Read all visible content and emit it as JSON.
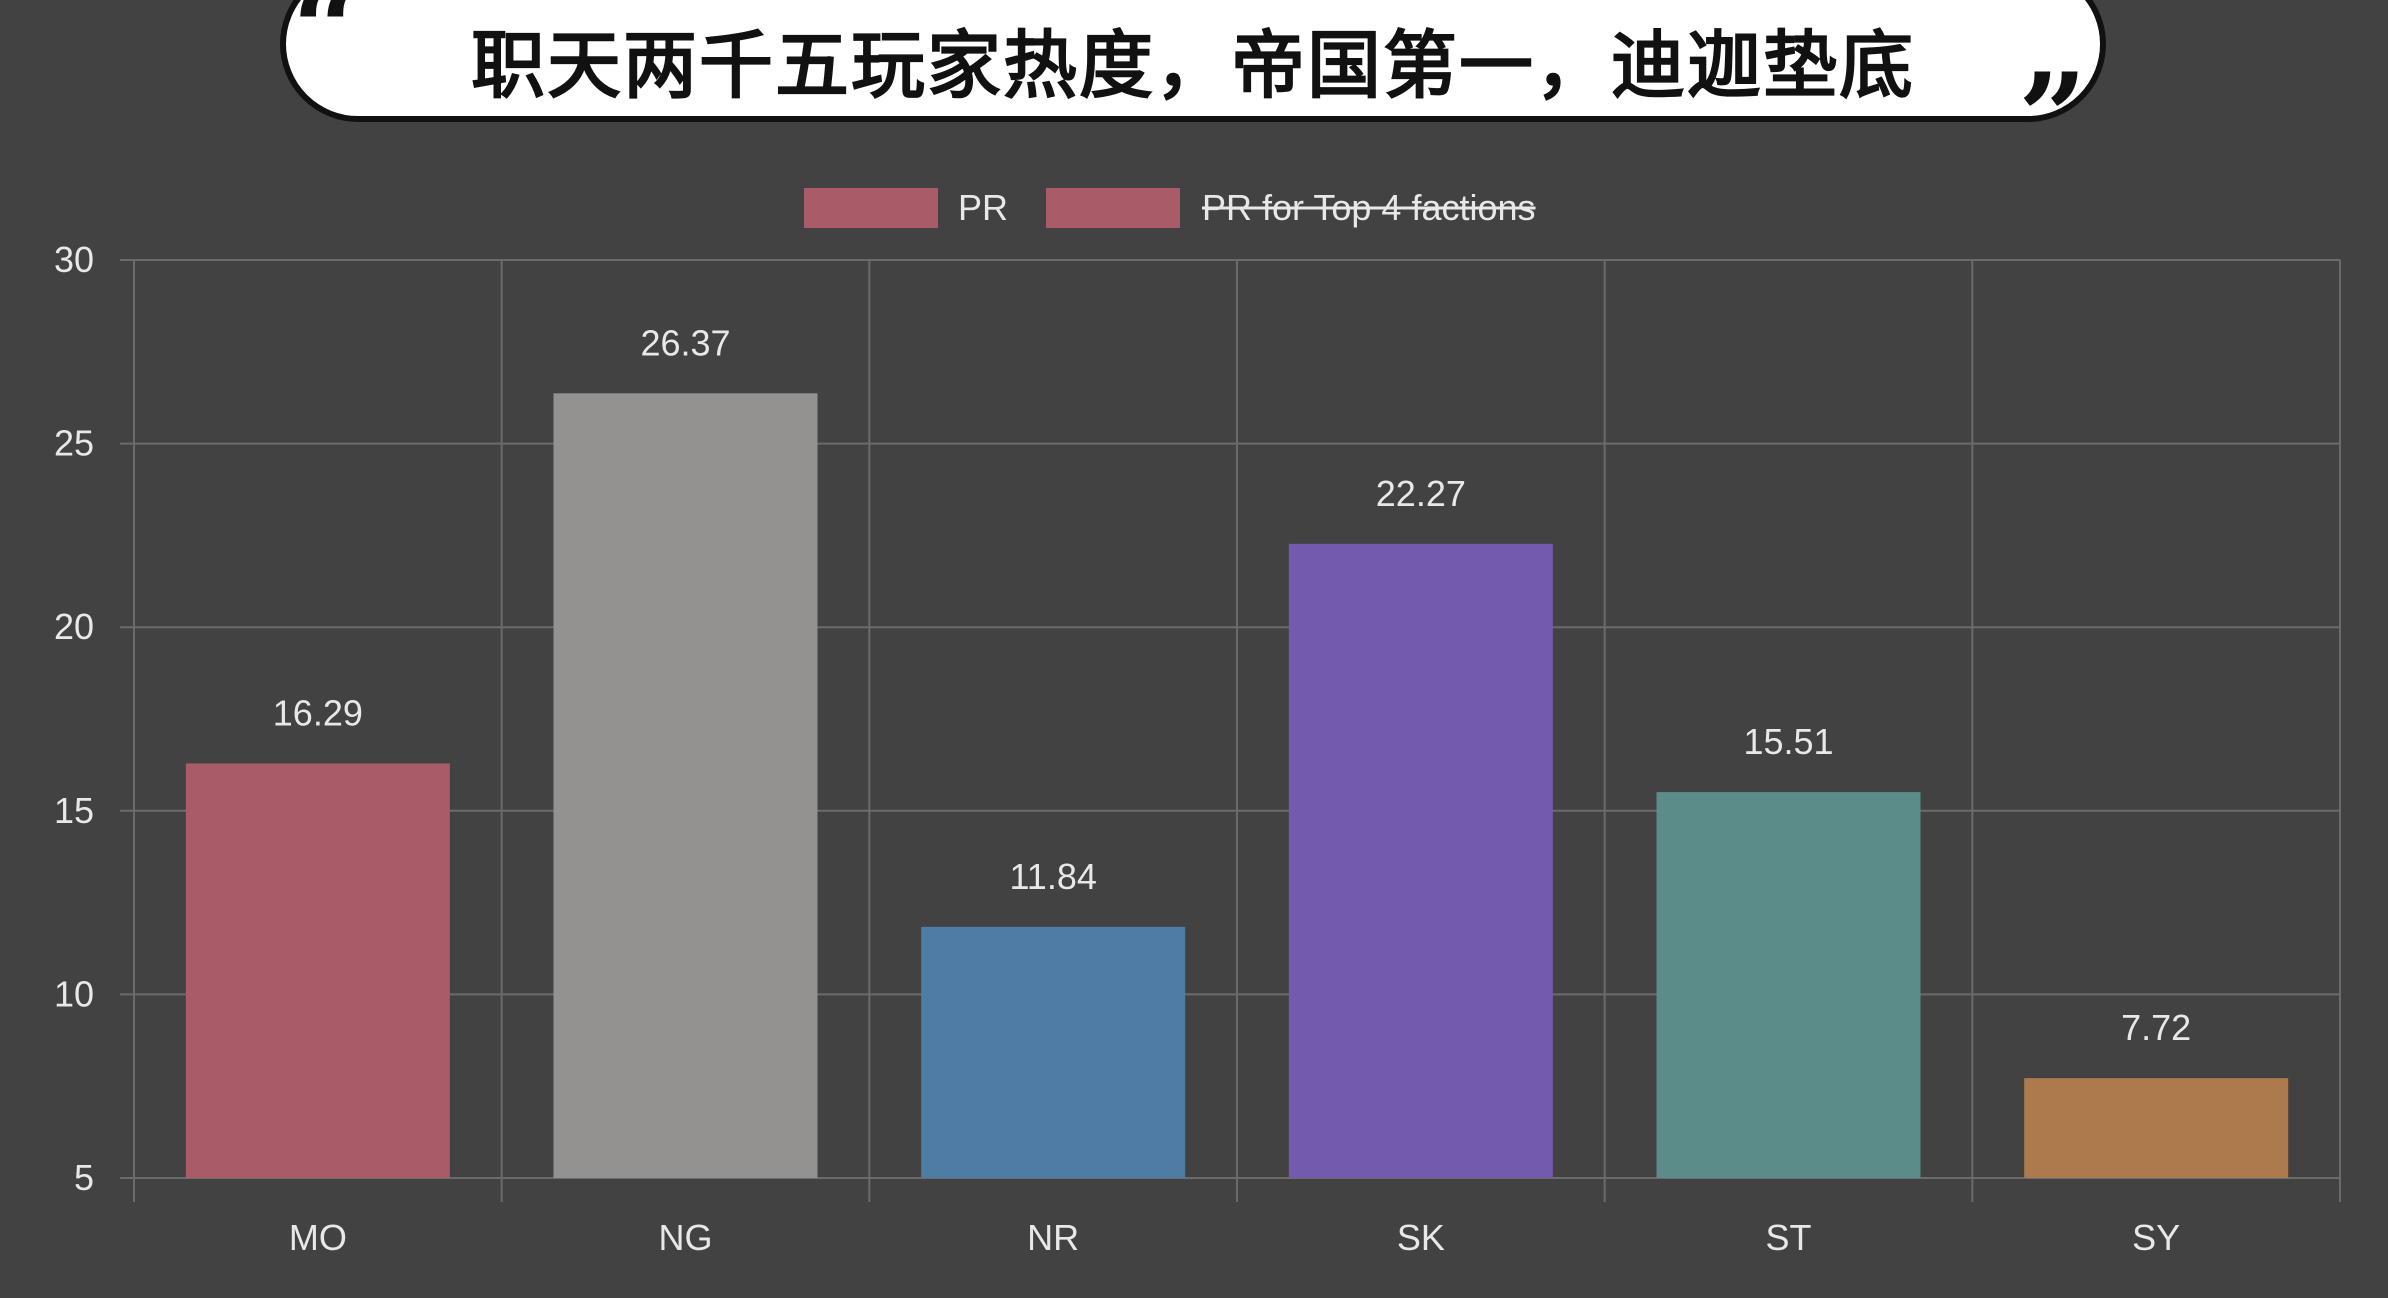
{
  "banner": {
    "title": "职天两千五玩家热度，帝国第一，迪迦垫底",
    "quote_open": "“",
    "quote_close": "”"
  },
  "chart_data": {
    "type": "bar",
    "categories": [
      "MO",
      "NG",
      "NR",
      "SK",
      "ST",
      "SY"
    ],
    "series": [
      {
        "name": "PR",
        "values": [
          16.29,
          26.37,
          11.84,
          22.27,
          15.51,
          7.72
        ],
        "colors": [
          "#a95c68",
          "#939291",
          "#4e7ca5",
          "#745aae",
          "#5b8c89",
          "#ac7a4d"
        ]
      }
    ],
    "data_labels": [
      "16.29",
      "26.37",
      "11.84",
      "22.27",
      "15.51",
      "7.72"
    ],
    "legend": [
      {
        "label": "PR",
        "color": "#a95c68",
        "hidden": false
      },
      {
        "label": "PR for Top 4 factions",
        "color": "#a95c68",
        "hidden": true
      }
    ],
    "legend_position": "top-center",
    "y_ticks": [
      "5",
      "10",
      "15",
      "20",
      "25",
      "30"
    ],
    "ylim": [
      5,
      30
    ],
    "grid": true,
    "title": "",
    "xlabel": "",
    "ylabel": ""
  },
  "colors": {
    "background": "#424242",
    "grid": "#6b6b6b",
    "text": "#e8e8e8"
  }
}
